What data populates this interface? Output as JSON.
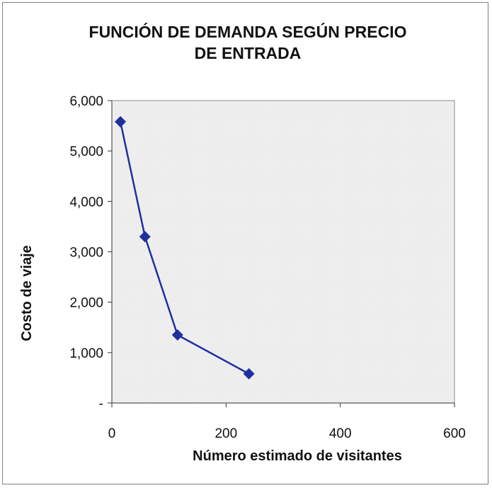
{
  "chart_data": {
    "type": "line",
    "title_lines": [
      "FUNCIÓN DE DEMANDA SEGÚN PRECIO",
      "DE ENTRADA"
    ],
    "xlabel": "Número estimado de visitantes",
    "ylabel": "Costo de viaje",
    "xlim": [
      0,
      600
    ],
    "ylim": [
      0,
      6000
    ],
    "x_ticks": [
      0,
      200,
      400,
      600
    ],
    "x_tick_labels": [
      "0",
      "200",
      "400",
      "600"
    ],
    "y_ticks": [
      0,
      1000,
      2000,
      3000,
      4000,
      5000,
      6000
    ],
    "y_tick_labels": [
      "-",
      "1,000",
      "2,000",
      "3,000",
      "4,000",
      "5,000",
      "6,000"
    ],
    "grid": false,
    "legend": "none",
    "series": [
      {
        "marker": "diamond",
        "color": "#1f2f9f",
        "x": [
          15,
          58,
          115,
          240
        ],
        "y": [
          5580,
          3300,
          1350,
          580
        ]
      }
    ]
  }
}
